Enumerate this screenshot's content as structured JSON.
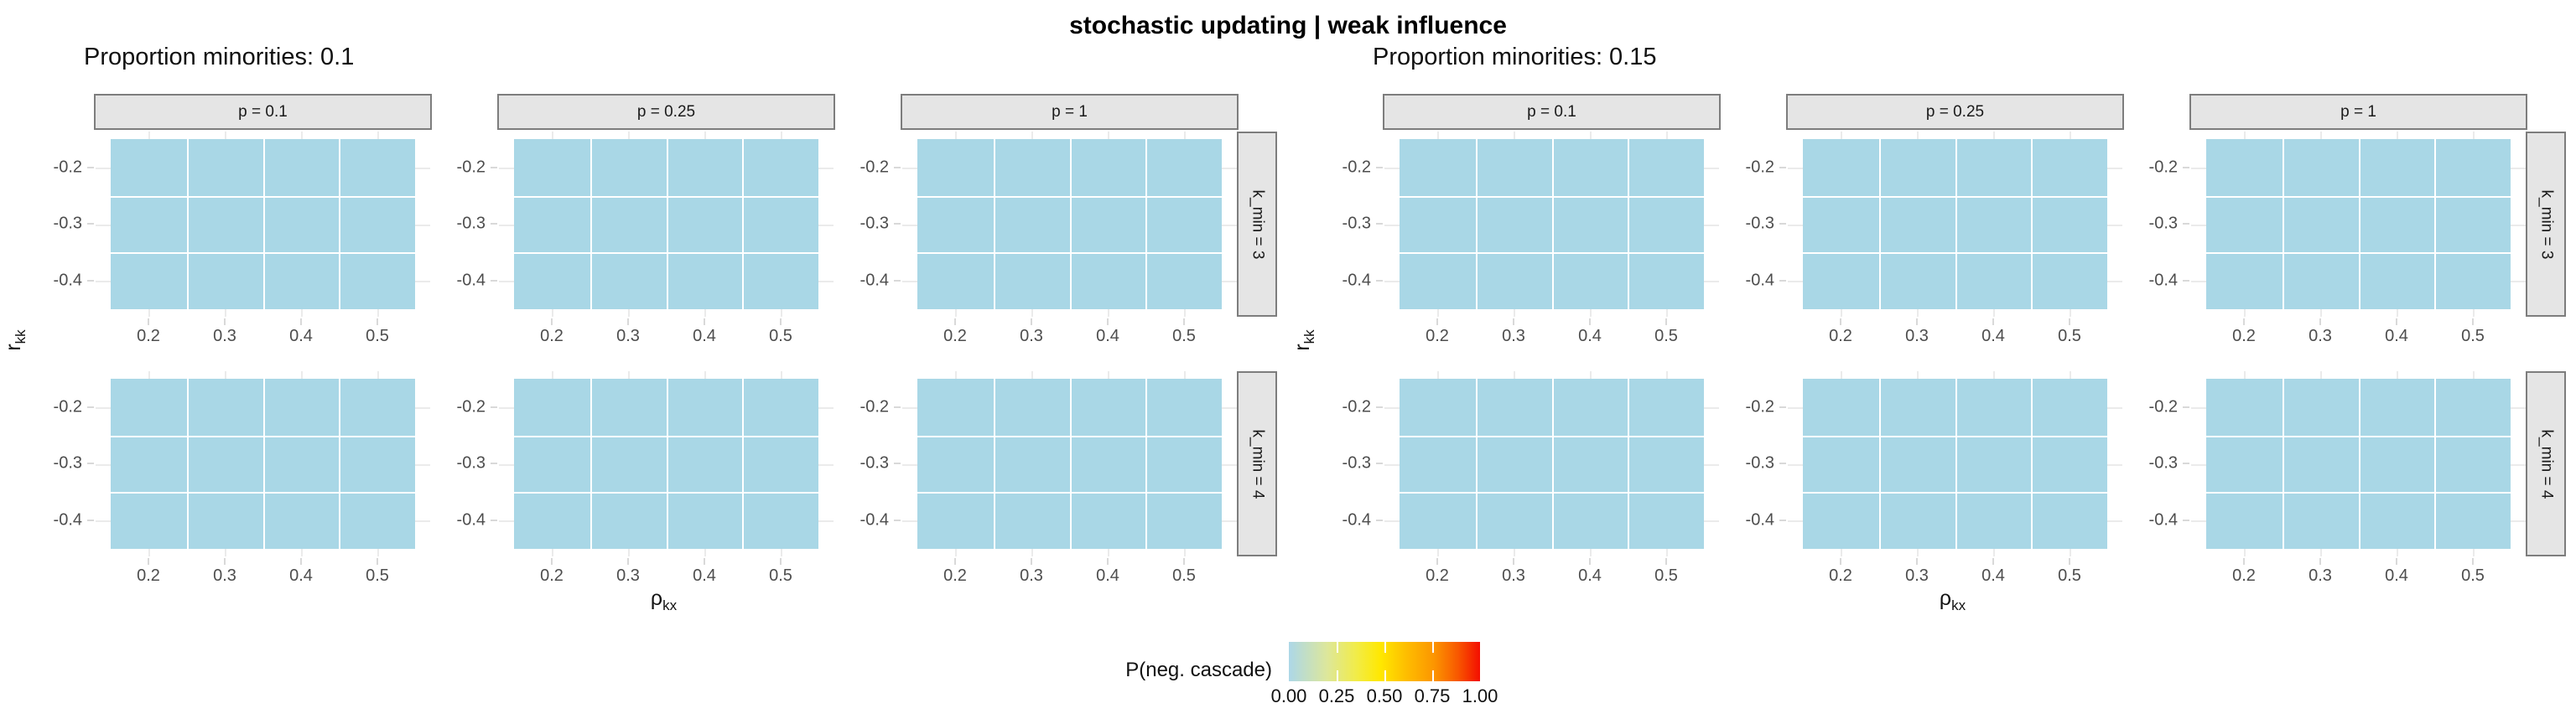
{
  "title": "stochastic updating | weak influence",
  "axes": {
    "x_title_base": "ρ",
    "x_title_sub": "kx",
    "y_title_base": "r",
    "y_title_sub": "kk",
    "x_ticks": [
      "0.2",
      "0.3",
      "0.4",
      "0.5"
    ],
    "y_ticks": [
      "-0.2",
      "-0.3",
      "-0.4"
    ]
  },
  "subfigures": [
    {
      "subtitle": "Proportion minorities: 0.1",
      "col_strips": [
        "p = 0.1",
        "p = 0.25",
        "p = 1"
      ],
      "row_strips": [
        "k_min = 3",
        "k_min = 4"
      ]
    },
    {
      "subtitle": "Proportion minorities: 0.15",
      "col_strips": [
        "p = 0.1",
        "p = 0.25",
        "p = 1"
      ],
      "row_strips": [
        "k_min = 3",
        "k_min = 4"
      ]
    }
  ],
  "legend": {
    "title": "P(neg. cascade)",
    "ticks": [
      "0.00",
      "0.25",
      "0.50",
      "0.75",
      "1.00"
    ],
    "gradient_colors": [
      "#ADD8E6",
      "#FFFF00",
      "#FF0000"
    ]
  },
  "colors": {
    "tile": "#A9D7E6",
    "strip_bg": "#E5E5E5",
    "strip_border": "#7D7D7D",
    "panel_grid": "#EBEBEB",
    "tick": "#D9D9D9",
    "axis_text": "#4D4D4D"
  },
  "chart_data": {
    "type": "heatmap",
    "title": "stochastic updating | weak influence",
    "xlabel": "ρ_kx",
    "ylabel": "r_kk",
    "x": [
      0.2,
      0.3,
      0.4,
      0.5
    ],
    "y": [
      -0.2,
      -0.3,
      -0.4
    ],
    "fill_label": "P(neg. cascade)",
    "fill_range": [
      0,
      1
    ],
    "legend_position": "bottom",
    "grid": true,
    "facet_columns_label": "p",
    "facet_rows_label": "k_min",
    "panels": [
      {
        "proportion_minorities": 0.1,
        "p": 0.1,
        "k_min": 3,
        "values": [
          [
            0,
            0,
            0,
            0
          ],
          [
            0,
            0,
            0,
            0
          ],
          [
            0,
            0,
            0,
            0
          ]
        ]
      },
      {
        "proportion_minorities": 0.1,
        "p": 0.25,
        "k_min": 3,
        "values": [
          [
            0,
            0,
            0,
            0
          ],
          [
            0,
            0,
            0,
            0
          ],
          [
            0,
            0,
            0,
            0
          ]
        ]
      },
      {
        "proportion_minorities": 0.1,
        "p": 1,
        "k_min": 3,
        "values": [
          [
            0,
            0,
            0,
            0
          ],
          [
            0,
            0,
            0,
            0
          ],
          [
            0,
            0,
            0,
            0
          ]
        ]
      },
      {
        "proportion_minorities": 0.1,
        "p": 0.1,
        "k_min": 4,
        "values": [
          [
            0,
            0,
            0,
            0
          ],
          [
            0,
            0,
            0,
            0
          ],
          [
            0,
            0,
            0,
            0
          ]
        ]
      },
      {
        "proportion_minorities": 0.1,
        "p": 0.25,
        "k_min": 4,
        "values": [
          [
            0,
            0,
            0,
            0
          ],
          [
            0,
            0,
            0,
            0
          ],
          [
            0,
            0,
            0,
            0
          ]
        ]
      },
      {
        "proportion_minorities": 0.1,
        "p": 1,
        "k_min": 4,
        "values": [
          [
            0,
            0,
            0,
            0
          ],
          [
            0,
            0,
            0,
            0
          ],
          [
            0,
            0,
            0,
            0
          ]
        ]
      },
      {
        "proportion_minorities": 0.15,
        "p": 0.1,
        "k_min": 3,
        "values": [
          [
            0,
            0,
            0,
            0
          ],
          [
            0,
            0,
            0,
            0
          ],
          [
            0,
            0,
            0,
            0
          ]
        ]
      },
      {
        "proportion_minorities": 0.15,
        "p": 0.25,
        "k_min": 3,
        "values": [
          [
            0,
            0,
            0,
            0
          ],
          [
            0,
            0,
            0,
            0
          ],
          [
            0,
            0,
            0,
            0
          ]
        ]
      },
      {
        "proportion_minorities": 0.15,
        "p": 1,
        "k_min": 3,
        "values": [
          [
            0,
            0,
            0,
            0
          ],
          [
            0,
            0,
            0,
            0
          ],
          [
            0,
            0,
            0,
            0
          ]
        ]
      },
      {
        "proportion_minorities": 0.15,
        "p": 0.1,
        "k_min": 4,
        "values": [
          [
            0,
            0,
            0,
            0
          ],
          [
            0,
            0,
            0,
            0
          ],
          [
            0,
            0,
            0,
            0
          ]
        ]
      },
      {
        "proportion_minorities": 0.15,
        "p": 0.25,
        "k_min": 4,
        "values": [
          [
            0,
            0,
            0,
            0
          ],
          [
            0,
            0,
            0,
            0
          ],
          [
            0,
            0,
            0,
            0
          ]
        ]
      },
      {
        "proportion_minorities": 0.15,
        "p": 1,
        "k_min": 4,
        "values": [
          [
            0,
            0,
            0,
            0
          ],
          [
            0,
            0,
            0,
            0
          ],
          [
            0,
            0,
            0,
            0
          ]
        ]
      }
    ]
  }
}
